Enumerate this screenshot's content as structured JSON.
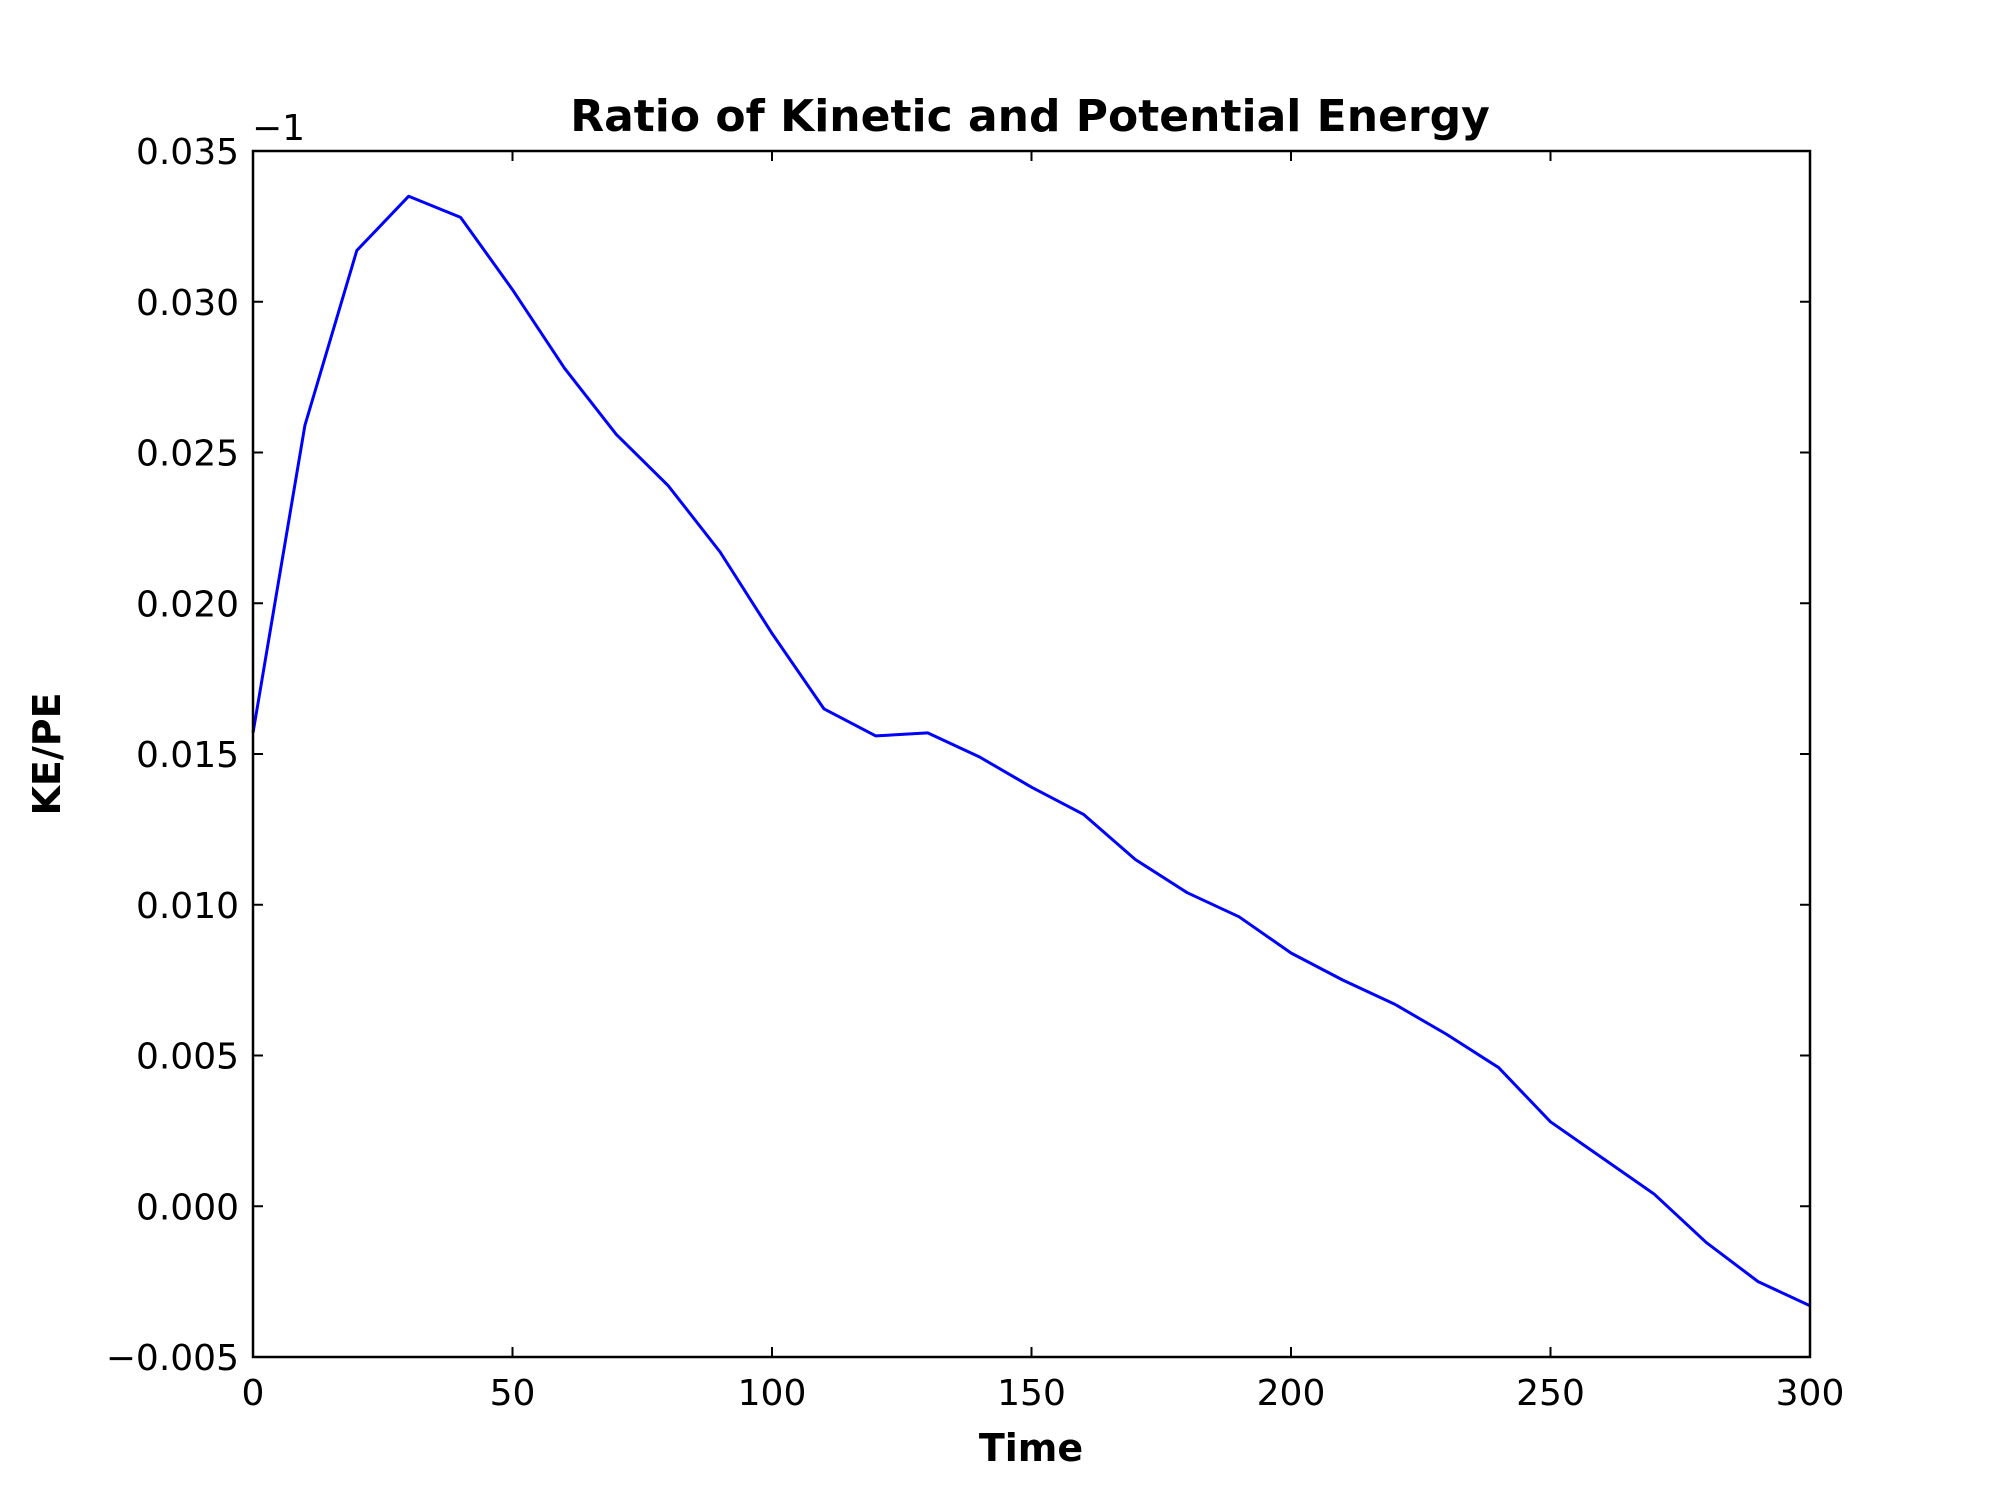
{
  "chart_data": {
    "type": "line",
    "title": "Ratio of Kinetic and Potential Energy",
    "xlabel": "Time",
    "ylabel": "KE/PE",
    "y_offset_label": "−1",
    "xlim": [
      0,
      300
    ],
    "ylim": [
      -0.005,
      0.035
    ],
    "xticks": [
      0,
      50,
      100,
      150,
      200,
      250,
      300
    ],
    "xtick_labels": [
      "0",
      "50",
      "100",
      "150",
      "200",
      "250",
      "300"
    ],
    "yticks": [
      -0.005,
      0.0,
      0.005,
      0.01,
      0.015,
      0.02,
      0.025,
      0.03,
      0.035
    ],
    "ytick_labels": [
      "−0.005",
      "0.000",
      "0.005",
      "0.010",
      "0.015",
      "0.020",
      "0.025",
      "0.030",
      "0.035"
    ],
    "grid": false,
    "legend": false,
    "series": [
      {
        "color": "#0000ff",
        "x": [
          0,
          10,
          20,
          30,
          40,
          50,
          60,
          70,
          80,
          90,
          100,
          110,
          120,
          130,
          140,
          150,
          160,
          170,
          180,
          190,
          200,
          210,
          220,
          230,
          240,
          250,
          260,
          270,
          280,
          290,
          300
        ],
        "y": [
          0.0157,
          0.0259,
          0.0317,
          0.0335,
          0.0328,
          0.0304,
          0.0278,
          0.0256,
          0.0239,
          0.0217,
          0.019,
          0.0165,
          0.0156,
          0.0157,
          0.0149,
          0.0139,
          0.013,
          0.0115,
          0.0104,
          0.0096,
          0.0084,
          0.0075,
          0.0067,
          0.0057,
          0.0046,
          0.0028,
          0.0016,
          0.0004,
          -0.0012,
          -0.0025,
          -0.0033
        ]
      }
    ]
  }
}
